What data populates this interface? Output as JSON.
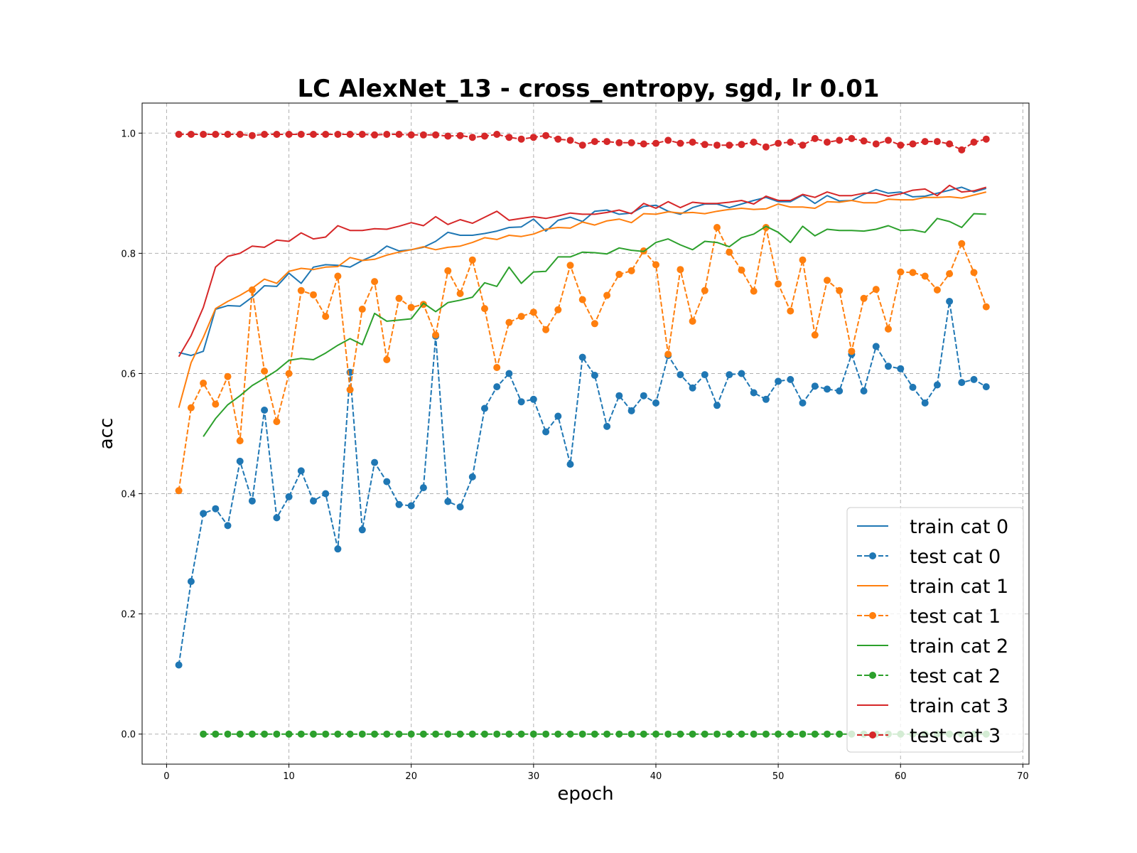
{
  "chart_data": {
    "type": "line",
    "title": "LC AlexNet_13 - cross_entropy, sgd, lr 0.01",
    "xlabel": "epoch",
    "ylabel": "acc",
    "xlim": [
      -2,
      70.5
    ],
    "ylim": [
      -0.05,
      1.05
    ],
    "xticks": [
      0,
      10,
      20,
      30,
      40,
      50,
      60,
      70
    ],
    "yticks": [
      0.0,
      0.2,
      0.4,
      0.6,
      0.8,
      1.0
    ],
    "xtick_labels": [
      "0",
      "10",
      "20",
      "30",
      "40",
      "50",
      "60",
      "70"
    ],
    "ytick_labels": [
      "0.0",
      "0.2",
      "0.4",
      "0.6",
      "0.8",
      "1.0"
    ],
    "grid": true,
    "legend_position": "lower-right",
    "series": [
      {
        "name": "train cat 0",
        "color": "#1f77b4",
        "style": "solid",
        "markers": false,
        "x_start": 1,
        "values": [
          0.635,
          0.63,
          0.637,
          0.707,
          0.713,
          0.712,
          0.727,
          0.746,
          0.745,
          0.767,
          0.75,
          0.777,
          0.781,
          0.78,
          0.777,
          0.788,
          0.797,
          0.812,
          0.804,
          0.806,
          0.81,
          0.82,
          0.835,
          0.83,
          0.83,
          0.833,
          0.837,
          0.843,
          0.844,
          0.857,
          0.837,
          0.855,
          0.86,
          0.853,
          0.87,
          0.872,
          0.865,
          0.867,
          0.878,
          0.88,
          0.87,
          0.865,
          0.876,
          0.882,
          0.882,
          0.876,
          0.882,
          0.888,
          0.893,
          0.886,
          0.886,
          0.897,
          0.883,
          0.896,
          0.887,
          0.888,
          0.898,
          0.906,
          0.9,
          0.902,
          0.894,
          0.895,
          0.9,
          0.905,
          0.91,
          0.902,
          0.908
        ]
      },
      {
        "name": "test cat 0",
        "color": "#1f77b4",
        "style": "dashed",
        "markers": true,
        "x_start": 1,
        "values": [
          0.115,
          0.254,
          0.367,
          0.375,
          0.347,
          0.454,
          0.388,
          0.539,
          0.36,
          0.395,
          0.438,
          0.388,
          0.4,
          0.308,
          0.602,
          0.34,
          0.452,
          0.42,
          0.382,
          0.38,
          0.41,
          0.662,
          0.387,
          0.378,
          0.428,
          0.542,
          0.578,
          0.6,
          0.553,
          0.557,
          0.503,
          0.529,
          0.449,
          0.627,
          0.597,
          0.512,
          0.563,
          0.538,
          0.563,
          0.551,
          0.63,
          0.598,
          0.576,
          0.598,
          0.547,
          0.598,
          0.6,
          0.568,
          0.557,
          0.587,
          0.59,
          0.551,
          0.579,
          0.574,
          0.571,
          0.632,
          0.571,
          0.645,
          0.612,
          0.608,
          0.577,
          0.551,
          0.581,
          0.72,
          0.585,
          0.59,
          0.578
        ]
      },
      {
        "name": "train cat 1",
        "color": "#ff7f0e",
        "style": "solid",
        "markers": false,
        "x_start": 1,
        "values": [
          0.543,
          0.618,
          0.66,
          0.708,
          0.72,
          0.73,
          0.742,
          0.757,
          0.75,
          0.77,
          0.775,
          0.773,
          0.777,
          0.778,
          0.793,
          0.788,
          0.79,
          0.797,
          0.802,
          0.806,
          0.811,
          0.806,
          0.81,
          0.812,
          0.818,
          0.826,
          0.823,
          0.83,
          0.828,
          0.832,
          0.84,
          0.843,
          0.842,
          0.852,
          0.847,
          0.854,
          0.857,
          0.851,
          0.866,
          0.865,
          0.869,
          0.867,
          0.868,
          0.866,
          0.87,
          0.873,
          0.875,
          0.873,
          0.874,
          0.882,
          0.877,
          0.877,
          0.875,
          0.886,
          0.885,
          0.888,
          0.884,
          0.884,
          0.89,
          0.889,
          0.889,
          0.893,
          0.893,
          0.894,
          0.892,
          0.897,
          0.902
        ]
      },
      {
        "name": "test cat 1",
        "color": "#ff7f0e",
        "style": "dashed",
        "markers": true,
        "x_start": 1,
        "values": [
          0.405,
          0.543,
          0.584,
          0.549,
          0.595,
          0.488,
          0.739,
          0.604,
          0.52,
          0.6,
          0.738,
          0.731,
          0.695,
          0.762,
          0.573,
          0.707,
          0.753,
          0.623,
          0.725,
          0.71,
          0.715,
          0.664,
          0.771,
          0.733,
          0.789,
          0.708,
          0.61,
          0.685,
          0.695,
          0.702,
          0.673,
          0.706,
          0.78,
          0.723,
          0.683,
          0.73,
          0.765,
          0.771,
          0.804,
          0.781,
          0.632,
          0.773,
          0.687,
          0.738,
          0.843,
          0.802,
          0.772,
          0.737,
          0.843,
          0.749,
          0.704,
          0.789,
          0.664,
          0.755,
          0.738,
          0.637,
          0.725,
          0.74,
          0.674,
          0.769,
          0.768,
          0.762,
          0.739,
          0.766,
          0.816,
          0.768,
          0.711
        ]
      },
      {
        "name": "train cat 2",
        "color": "#2ca02c",
        "style": "solid",
        "markers": false,
        "x_start": 3,
        "values": [
          0.495,
          0.525,
          0.548,
          0.563,
          0.58,
          0.592,
          0.605,
          0.622,
          0.625,
          0.623,
          0.634,
          0.647,
          0.658,
          0.648,
          0.7,
          0.687,
          0.689,
          0.691,
          0.717,
          0.703,
          0.718,
          0.722,
          0.727,
          0.751,
          0.745,
          0.777,
          0.75,
          0.769,
          0.77,
          0.794,
          0.794,
          0.802,
          0.801,
          0.799,
          0.809,
          0.805,
          0.803,
          0.818,
          0.824,
          0.814,
          0.806,
          0.82,
          0.818,
          0.811,
          0.826,
          0.832,
          0.845,
          0.835,
          0.818,
          0.845,
          0.829,
          0.84,
          0.838,
          0.838,
          0.837,
          0.84,
          0.846,
          0.838,
          0.839,
          0.835,
          0.858,
          0.853,
          0.843,
          0.866,
          0.865
        ]
      },
      {
        "name": "test cat 2",
        "color": "#2ca02c",
        "style": "dashed",
        "markers": true,
        "x_start": 3,
        "values": [
          0,
          0,
          0,
          0,
          0,
          0,
          0,
          0,
          0,
          0,
          0,
          0,
          0,
          0,
          0,
          0,
          0,
          0,
          0,
          0,
          0,
          0,
          0,
          0,
          0,
          0,
          0,
          0,
          0,
          0,
          0,
          0,
          0,
          0,
          0,
          0,
          0,
          0,
          0,
          0,
          0,
          0,
          0,
          0,
          0,
          0,
          0,
          0,
          0,
          0,
          0,
          0,
          0,
          0,
          0,
          0,
          0,
          0,
          0,
          0,
          0,
          0,
          0,
          0,
          0
        ]
      },
      {
        "name": "train cat 3",
        "color": "#d62728",
        "style": "solid",
        "markers": false,
        "x_start": 1,
        "values": [
          0.628,
          0.663,
          0.71,
          0.777,
          0.795,
          0.8,
          0.812,
          0.81,
          0.822,
          0.82,
          0.834,
          0.824,
          0.827,
          0.846,
          0.838,
          0.838,
          0.841,
          0.84,
          0.845,
          0.851,
          0.846,
          0.861,
          0.848,
          0.856,
          0.85,
          0.86,
          0.87,
          0.855,
          0.858,
          0.861,
          0.858,
          0.862,
          0.867,
          0.865,
          0.865,
          0.868,
          0.872,
          0.866,
          0.883,
          0.875,
          0.886,
          0.876,
          0.885,
          0.883,
          0.883,
          0.885,
          0.888,
          0.882,
          0.895,
          0.888,
          0.888,
          0.898,
          0.893,
          0.902,
          0.896,
          0.896,
          0.9,
          0.9,
          0.895,
          0.899,
          0.905,
          0.907,
          0.896,
          0.913,
          0.902,
          0.904,
          0.91
        ]
      },
      {
        "name": "test cat 3",
        "color": "#d62728",
        "style": "dashed",
        "markers": true,
        "x_start": 1,
        "values": [
          0.998,
          0.998,
          0.998,
          0.998,
          0.998,
          0.998,
          0.996,
          0.998,
          0.998,
          0.998,
          0.998,
          0.998,
          0.998,
          0.998,
          0.998,
          0.998,
          0.997,
          0.998,
          0.998,
          0.997,
          0.997,
          0.997,
          0.995,
          0.996,
          0.993,
          0.995,
          0.998,
          0.993,
          0.99,
          0.993,
          0.996,
          0.99,
          0.988,
          0.98,
          0.986,
          0.986,
          0.984,
          0.984,
          0.982,
          0.983,
          0.988,
          0.983,
          0.985,
          0.981,
          0.98,
          0.98,
          0.981,
          0.985,
          0.977,
          0.983,
          0.985,
          0.98,
          0.991,
          0.985,
          0.988,
          0.991,
          0.987,
          0.982,
          0.988,
          0.98,
          0.982,
          0.986,
          0.986,
          0.982,
          0.972,
          0.985,
          0.99
        ]
      }
    ]
  }
}
